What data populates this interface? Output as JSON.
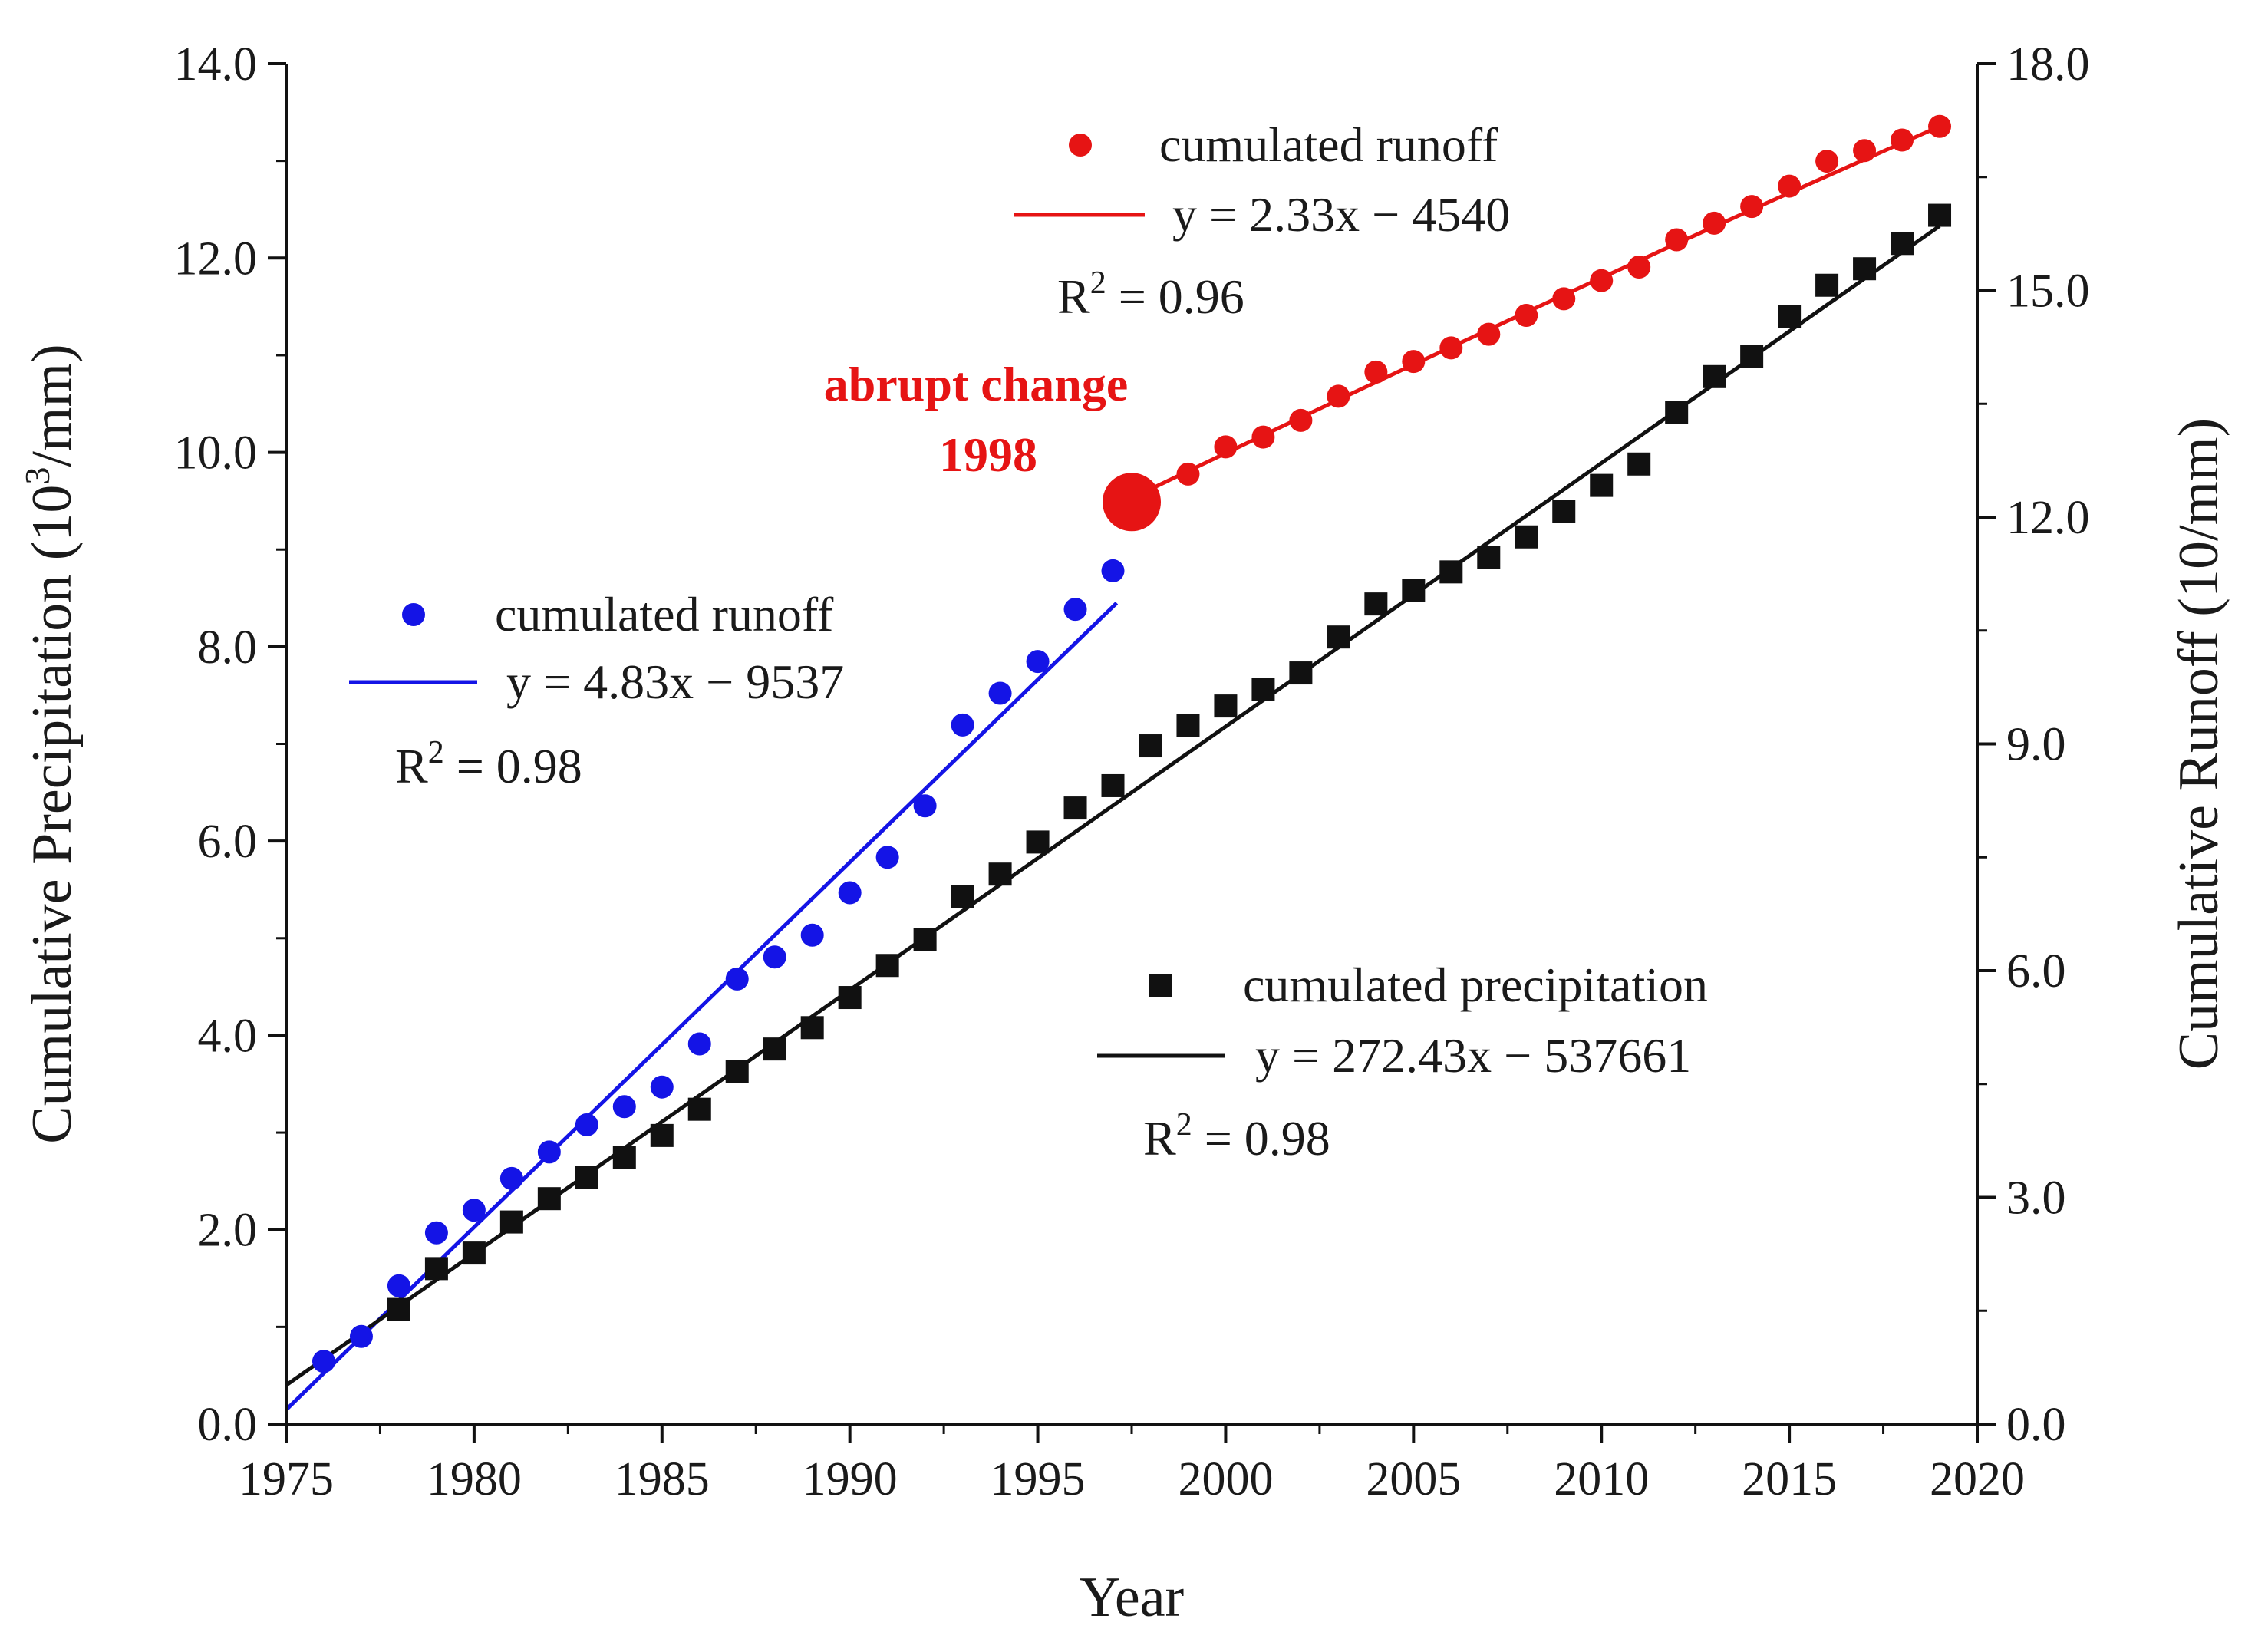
{
  "chart_data": {
    "type": "scatter",
    "title": "",
    "xlabel": "Year",
    "ylabel_left": "Cumulative Precipitation (10³/mm)",
    "ylabel_left_parts": {
      "before": "Cumulative Precipitation (10",
      "sup": "3",
      "after": "/mm)"
    },
    "ylabel_right": "Cumulative Runoff (10/mm)",
    "xlim": [
      1975,
      2020
    ],
    "ylim_left": [
      0,
      14
    ],
    "ylim_right": [
      0,
      18
    ],
    "x_ticks": [
      "1975",
      "1980",
      "1985",
      "1990",
      "1995",
      "2000",
      "2005",
      "2010",
      "2015",
      "2020"
    ],
    "y_left_ticks": [
      "0.0",
      "2.0",
      "4.0",
      "6.0",
      "8.0",
      "10.0",
      "12.0",
      "14.0"
    ],
    "y_right_ticks": [
      "0.0",
      "3.0",
      "6.0",
      "9.0",
      "12.0",
      "15.0",
      "18.0"
    ],
    "grid": false,
    "colors": {
      "runoff_before": "#1414e6",
      "runoff_after": "#e61414",
      "precipitation": "#111111",
      "annotation": "#e61414"
    },
    "series": [
      {
        "name": "cumulated runoff (1976-1997)",
        "axis": "right",
        "marker": "circle",
        "color": "#1414e6",
        "x": [
          1976,
          1977,
          1978,
          1979,
          1980,
          1981,
          1982,
          1983,
          1984,
          1985,
          1986,
          1987,
          1988,
          1989,
          1990,
          1991,
          1992,
          1993,
          1994,
          1995,
          1996,
          1997
        ],
        "y": [
          0.83,
          1.16,
          1.83,
          2.53,
          2.83,
          3.25,
          3.6,
          3.96,
          4.2,
          4.46,
          5.03,
          5.89,
          6.18,
          6.47,
          7.03,
          7.5,
          8.18,
          9.25,
          9.67,
          10.09,
          10.78,
          11.29
        ],
        "fit": {
          "equation": "y = 4.83x − 9537",
          "r2_prefix": "R",
          "r2_exp": "2",
          "r2_value": " = 0.98",
          "x_range": [
            1975,
            1997.1
          ],
          "slope_per_year": 0.483,
          "start_value": 0.19
        }
      },
      {
        "name": "cumulated runoff (1998-2019)",
        "axis": "right",
        "marker": "circle",
        "color": "#e61414",
        "x": [
          1999,
          2000,
          2001,
          2002,
          2003,
          2004,
          2005,
          2006,
          2007,
          2008,
          2009,
          2010,
          2011,
          2012,
          2013,
          2014,
          2015,
          2016,
          2017,
          2018,
          2019
        ],
        "y": [
          12.57,
          12.93,
          13.06,
          13.28,
          13.6,
          13.92,
          14.06,
          14.24,
          14.42,
          14.67,
          14.89,
          15.13,
          15.31,
          15.67,
          15.89,
          16.11,
          16.38,
          16.71,
          16.85,
          16.99,
          17.17
        ],
        "fit": {
          "equation": "y = 2.33x − 4540",
          "r2_prefix": "R",
          "r2_exp": "2",
          "r2_value": " = 0.96",
          "x_range": [
            1998,
            2019
          ],
          "slope_per_year": 0.233,
          "start_value": 12.37,
          "curve_control": [
            2008.5,
            14.88
          ]
        }
      },
      {
        "name": "cumulated precipitation",
        "axis": "left",
        "marker": "square",
        "color": "#111111",
        "x": [
          1978,
          1979,
          1980,
          1981,
          1982,
          1983,
          1984,
          1985,
          1986,
          1987,
          1988,
          1989,
          1990,
          1991,
          1992,
          1993,
          1994,
          1995,
          1996,
          1997,
          1998,
          1999,
          2000,
          2001,
          2002,
          2003,
          2004,
          2005,
          2006,
          2007,
          2008,
          2009,
          2010,
          2011,
          2012,
          2013,
          2014,
          2015,
          2016,
          2017,
          2018,
          2019
        ],
        "y": [
          1.18,
          1.6,
          1.76,
          2.08,
          2.32,
          2.54,
          2.74,
          2.97,
          3.24,
          3.63,
          3.86,
          4.08,
          4.39,
          4.72,
          4.99,
          5.43,
          5.66,
          5.99,
          6.34,
          6.57,
          6.98,
          7.19,
          7.39,
          7.56,
          7.73,
          8.1,
          8.44,
          8.58,
          8.77,
          8.92,
          9.13,
          9.39,
          9.66,
          9.88,
          10.41,
          10.78,
          10.99,
          11.4,
          11.72,
          11.89,
          12.15,
          12.44
        ],
        "fit": {
          "equation": "y = 272.43x − 537661",
          "r2_prefix": "R",
          "r2_exp": "2",
          "r2_value": " = 0.98",
          "x_range": [
            1975,
            2019
          ],
          "start_value": 0.4,
          "end_value": 12.33
        }
      }
    ],
    "legends": [
      {
        "series_index": 0,
        "label": "cumulated runoff"
      },
      {
        "series_index": 1,
        "label": "cumulated runoff"
      },
      {
        "series_index": 2,
        "label": "cumulated precipitation"
      }
    ],
    "annotations": [
      {
        "text_line1": "abrupt change",
        "text_line2": "1998",
        "x": 1997.5,
        "y_right": 12.2,
        "marker": "large-circle"
      }
    ]
  }
}
